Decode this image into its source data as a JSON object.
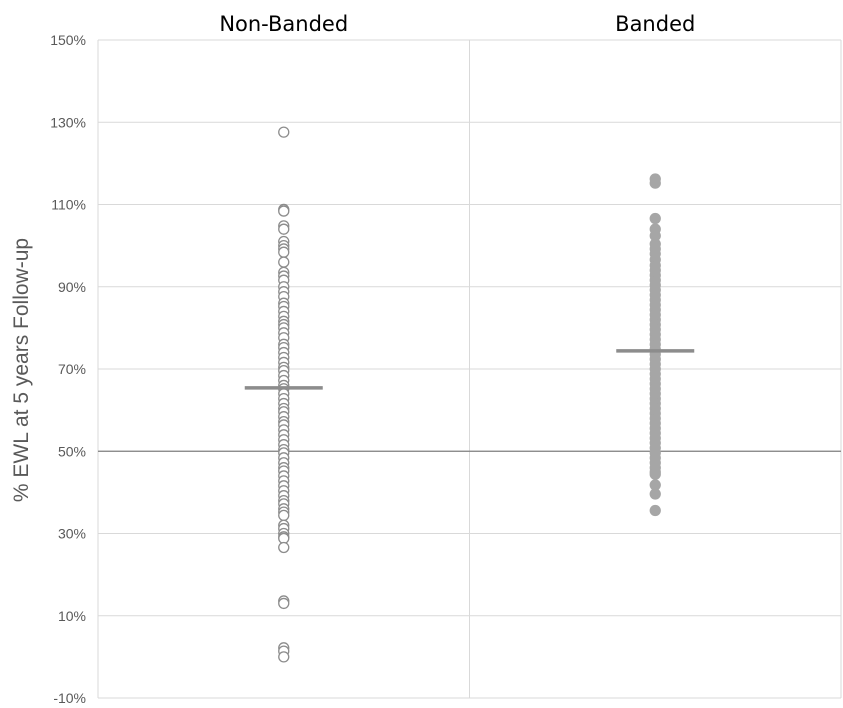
{
  "chart_data": {
    "type": "scatter",
    "title": "",
    "xlabel": "",
    "ylabel": "% EWL at 5 years Follow-up",
    "ylim": [
      -10,
      150
    ],
    "yticks": [
      "150%",
      "130%",
      "110%",
      "90%",
      "70%",
      "50%",
      "30%",
      "10%",
      "-10%"
    ],
    "reference_line": 50,
    "grid": true,
    "legend": "none",
    "categories": [
      "Non-Banded",
      "Banded"
    ],
    "series": [
      {
        "marker": "hollow-circle",
        "color": "#8c8c8c",
        "mean": 65.4,
        "values": [
          127.6,
          108.8,
          108.4,
          104.8,
          104.0,
          101.0,
          100.0,
          99.2,
          98.4,
          96.0,
          93.5,
          92.6,
          91.6,
          90.0,
          88.8,
          87.6,
          86.0,
          85.2,
          84.0,
          82.8,
          81.6,
          80.8,
          80.0,
          78.8,
          77.6,
          76.0,
          75.2,
          74.0,
          72.8,
          71.6,
          70.4,
          69.6,
          68.4,
          67.2,
          66.0,
          65.2,
          64.0,
          62.8,
          61.6,
          60.4,
          59.6,
          58.4,
          57.2,
          56.4,
          55.2,
          54.0,
          52.8,
          51.6,
          50.4,
          49.6,
          48.4,
          47.2,
          46.0,
          45.2,
          44.0,
          42.8,
          41.6,
          40.4,
          39.2,
          38.0,
          37.2,
          36.0,
          35.2,
          34.4,
          32.0,
          31.2,
          30.0,
          29.2,
          28.8,
          26.6,
          13.6,
          13.0,
          2.2,
          1.4,
          0.0
        ]
      },
      {
        "marker": "filled-circle",
        "color": "#a6a6a6",
        "mean": 74.4,
        "values": [
          116.2,
          115.2,
          106.6,
          104.0,
          102.4,
          100.4,
          99.2,
          98.0,
          96.6,
          95.2,
          94.0,
          92.8,
          91.6,
          90.4,
          89.2,
          88.0,
          86.8,
          85.6,
          84.4,
          83.2,
          82.0,
          80.8,
          79.6,
          78.4,
          77.2,
          76.0,
          74.8,
          73.6,
          72.4,
          71.2,
          70.0,
          68.8,
          67.6,
          66.4,
          65.2,
          64.0,
          62.8,
          61.6,
          60.4,
          59.2,
          58.0,
          56.8,
          55.6,
          54.4,
          53.2,
          52.0,
          50.8,
          49.6,
          48.4,
          47.2,
          46.0,
          45.0,
          44.4,
          41.8,
          39.6,
          35.6
        ]
      }
    ]
  }
}
